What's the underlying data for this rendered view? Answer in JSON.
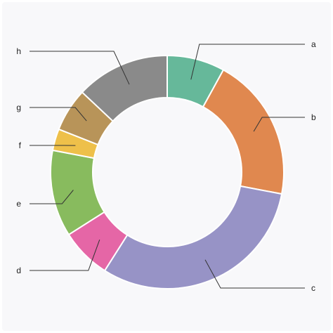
{
  "chart_data": {
    "type": "pie",
    "donut": true,
    "title": "",
    "categories": [
      "a",
      "b",
      "c",
      "d",
      "e",
      "f",
      "g",
      "h"
    ],
    "values": [
      8,
      20,
      31,
      7,
      12,
      3,
      6,
      13
    ],
    "colors": [
      "#66b89a",
      "#e0884f",
      "#9793c6",
      "#e566a6",
      "#88bb5e",
      "#eec04a",
      "#b89459",
      "#8a8a8a"
    ],
    "legend": "none",
    "start_angle": "top, clockwise"
  }
}
